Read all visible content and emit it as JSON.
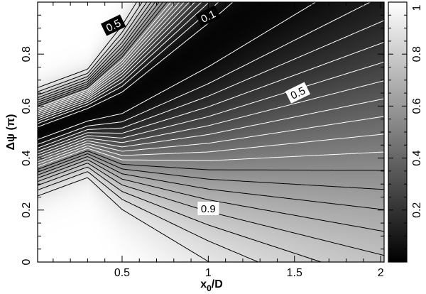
{
  "chart_data": {
    "type": "heatmap",
    "plot_type": "contour",
    "xlabel": "x",
    "xlabel_sub": "0",
    "xlabel_tail": "/D",
    "ylabel": "Δψ (π)",
    "xlim": [
      0.01,
      2.02
    ],
    "ylim": [
      0,
      1.0
    ],
    "x_ticks": [
      0.5,
      1,
      1.5,
      2
    ],
    "x_tick_labels": [
      "0.5",
      "1",
      "1.5",
      "2"
    ],
    "y_ticks": [
      0,
      0.2,
      0.4,
      0.6,
      0.8
    ],
    "y_tick_labels": [
      "0",
      "0.2",
      "0.4",
      "0.6",
      "0.8"
    ],
    "colorbar": {
      "range": [
        0,
        1
      ],
      "ticks": [
        0.2,
        0.4,
        0.6,
        0.8,
        1
      ],
      "tick_labels": [
        "0.2",
        "0.4",
        "0.6",
        "0.8",
        "1"
      ],
      "colormap": "grayscale (0 = black, 1 = white)"
    },
    "contour_levels": [
      0.05,
      0.1,
      0.15,
      0.2,
      0.25,
      0.3,
      0.35,
      0.4,
      0.45,
      0.5,
      0.55,
      0.6,
      0.65,
      0.7,
      0.75,
      0.8,
      0.85,
      0.9
    ],
    "contour_line_colors": {
      "dark_region": "#ffffff",
      "light_region": "#000000"
    },
    "contour_labels": [
      {
        "text": "0.5",
        "x": 0.45,
        "y": 0.91,
        "color": "white"
      },
      {
        "text": "0.1",
        "x": 1.0,
        "y": 0.945,
        "color": "white"
      },
      {
        "text": "0.5",
        "x": 1.52,
        "y": 0.65,
        "color": "black"
      },
      {
        "text": "0.9",
        "x": 1.0,
        "y": 0.205,
        "color": "black"
      }
    ],
    "ridge_minimum_curve": [
      {
        "x": 0.01,
        "y": 0.5
      },
      {
        "x": 0.5,
        "y": 0.62
      },
      {
        "x": 1.0,
        "y": 0.85
      },
      {
        "x": 1.3,
        "y": 1.0
      }
    ]
  }
}
